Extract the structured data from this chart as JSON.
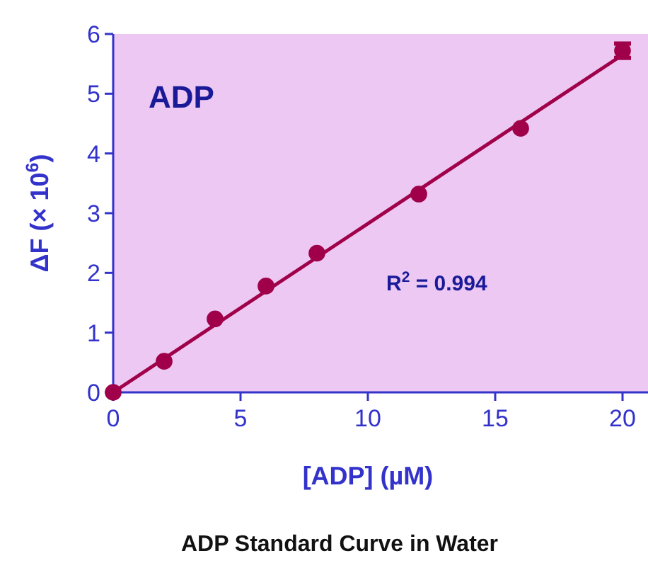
{
  "chart_data": {
    "type": "scatter",
    "title": "ADP Standard Curve in Water",
    "xlabel": "[ADP] (µM)",
    "ylabel": "ΔF (× 10$^{6}$)",
    "annotations": [
      "ADP",
      "R$^{2}$ = 0.994"
    ],
    "x": [
      0,
      2,
      4,
      6,
      8,
      12,
      16,
      20
    ],
    "series": [
      {
        "color": "#a0004a",
        "marker": "circle",
        "values": [
          0,
          0.52,
          1.23,
          1.78,
          2.33,
          3.32,
          4.42,
          5.72
        ],
        "errors": [
          null,
          null,
          null,
          null,
          null,
          null,
          null,
          0.12
        ]
      },
      {
        "type": "line",
        "color": "#a0004a",
        "x": [
          0,
          20
        ],
        "values": [
          0,
          5.65
        ]
      }
    ],
    "xlim": [
      0,
      21
    ],
    "ylim": [
      0,
      6
    ],
    "xticks": [
      0,
      5,
      10,
      15,
      20
    ],
    "yticks": [
      0,
      1,
      2,
      3,
      4,
      5,
      6
    ],
    "grid": false
  }
}
